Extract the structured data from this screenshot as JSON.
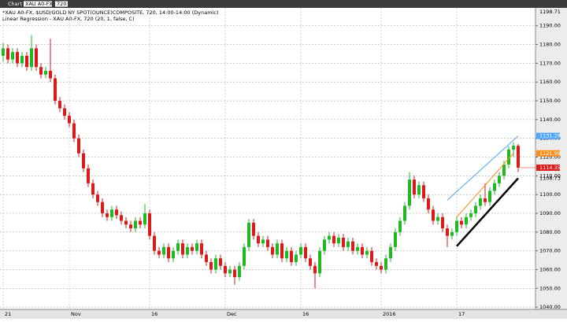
{
  "toolbar": {
    "title": "Chart",
    "symbol": "XAU A0-FX",
    "interval": "720"
  },
  "chart_data": {
    "type": "candlestick",
    "title": "*XAU A0-FX, $USD/GOLD NY SPOT(OUNCE)COMPOSITE, 720, 14:00-14:00 (Dynamic)",
    "subtitle": "Linear Regression - XAU A0-FX, 720 (20, 1, false, C)",
    "up_color": "#22b822",
    "down_color": "#dd1a1a",
    "grid": true,
    "ylim": [
      1039.2,
      1198.71
    ],
    "yticks": [
      {
        "value": 1190,
        "label": "1190.00"
      },
      {
        "value": 1180,
        "label": "1180.00"
      },
      {
        "value": 1170,
        "label": "1170.00"
      },
      {
        "value": 1160,
        "label": "1160.00"
      },
      {
        "value": 1150,
        "label": "1150.00"
      },
      {
        "value": 1140,
        "label": "1140.00"
      },
      {
        "value": 1130,
        "label": "1130.00"
      },
      {
        "value": 1120,
        "label": "1120.00"
      },
      {
        "value": 1110,
        "label": "1110.00"
      },
      {
        "value": 1100,
        "label": "1100.00"
      },
      {
        "value": 1090,
        "label": "1090.00"
      },
      {
        "value": 1080,
        "label": "1080.00"
      },
      {
        "value": 1070,
        "label": "1070.00"
      },
      {
        "value": 1060,
        "label": "1060.00"
      },
      {
        "value": 1050,
        "label": "1050.00"
      },
      {
        "value": 1040,
        "label": "1040.00"
      }
    ],
    "xticks": [
      {
        "value": 0,
        "label": "21"
      },
      {
        "value": 14,
        "label": "Nov"
      },
      {
        "value": 31,
        "label": "16"
      },
      {
        "value": 47,
        "label": "Dec"
      },
      {
        "value": 63,
        "label": "16"
      },
      {
        "value": 80,
        "label": "2016"
      },
      {
        "value": 96,
        "label": "17"
      }
    ],
    "candles": [
      [
        1174,
        1181,
        1171,
        1178
      ],
      [
        1178,
        1180,
        1170,
        1172
      ],
      [
        1172,
        1178,
        1170,
        1176
      ],
      [
        1176,
        1178,
        1168,
        1170
      ],
      [
        1170,
        1176,
        1168,
        1174
      ],
      [
        1174,
        1176,
        1166,
        1168
      ],
      [
        1168,
        1185,
        1166,
        1178
      ],
      [
        1178,
        1180,
        1166,
        1168
      ],
      [
        1168,
        1170,
        1162,
        1164
      ],
      [
        1164,
        1168,
        1162,
        1166
      ],
      [
        1166,
        1183,
        1160,
        1162
      ],
      [
        1162,
        1164,
        1148,
        1150
      ],
      [
        1150,
        1152,
        1144,
        1146
      ],
      [
        1146,
        1148,
        1140,
        1142
      ],
      [
        1142,
        1144,
        1136,
        1138
      ],
      [
        1138,
        1140,
        1128,
        1130
      ],
      [
        1130,
        1132,
        1120,
        1122
      ],
      [
        1122,
        1124,
        1112,
        1114
      ],
      [
        1114,
        1116,
        1104,
        1106
      ],
      [
        1106,
        1108,
        1098,
        1100
      ],
      [
        1100,
        1102,
        1094,
        1096
      ],
      [
        1096,
        1098,
        1088,
        1090
      ],
      [
        1090,
        1092,
        1086,
        1088
      ],
      [
        1088,
        1094,
        1086,
        1092
      ],
      [
        1092,
        1094,
        1087,
        1089
      ],
      [
        1089,
        1091,
        1084,
        1086
      ],
      [
        1086,
        1088,
        1082,
        1084
      ],
      [
        1084,
        1086,
        1080,
        1082
      ],
      [
        1082,
        1088,
        1080,
        1086
      ],
      [
        1086,
        1088,
        1082,
        1084
      ],
      [
        1084,
        1095,
        1082,
        1090
      ],
      [
        1090,
        1092,
        1076,
        1078
      ],
      [
        1078,
        1080,
        1068,
        1070
      ],
      [
        1070,
        1072,
        1066,
        1068
      ],
      [
        1068,
        1074,
        1066,
        1072
      ],
      [
        1072,
        1074,
        1064,
        1066
      ],
      [
        1066,
        1072,
        1064,
        1070
      ],
      [
        1070,
        1076,
        1068,
        1074
      ],
      [
        1074,
        1076,
        1066,
        1068
      ],
      [
        1068,
        1074,
        1066,
        1072
      ],
      [
        1072,
        1074,
        1068,
        1070
      ],
      [
        1070,
        1076,
        1068,
        1074
      ],
      [
        1074,
        1076,
        1066,
        1068
      ],
      [
        1068,
        1070,
        1062,
        1064
      ],
      [
        1064,
        1066,
        1058,
        1060
      ],
      [
        1060,
        1068,
        1058,
        1066
      ],
      [
        1066,
        1068,
        1060,
        1062
      ],
      [
        1062,
        1064,
        1056,
        1058
      ],
      [
        1058,
        1062,
        1056,
        1060
      ],
      [
        1060,
        1062,
        1052,
        1056
      ],
      [
        1056,
        1064,
        1054,
        1062
      ],
      [
        1062,
        1074,
        1060,
        1072
      ],
      [
        1072,
        1087,
        1070,
        1085
      ],
      [
        1085,
        1087,
        1076,
        1078
      ],
      [
        1078,
        1080,
        1072,
        1074
      ],
      [
        1074,
        1078,
        1072,
        1076
      ],
      [
        1076,
        1078,
        1070,
        1072
      ],
      [
        1072,
        1074,
        1066,
        1068
      ],
      [
        1068,
        1076,
        1066,
        1074
      ],
      [
        1074,
        1076,
        1064,
        1066
      ],
      [
        1066,
        1072,
        1064,
        1070
      ],
      [
        1070,
        1072,
        1062,
        1064
      ],
      [
        1064,
        1070,
        1062,
        1068
      ],
      [
        1068,
        1074,
        1066,
        1072
      ],
      [
        1072,
        1074,
        1064,
        1066
      ],
      [
        1066,
        1068,
        1060,
        1062
      ],
      [
        1062,
        1064,
        1050,
        1058
      ],
      [
        1058,
        1072,
        1056,
        1070
      ],
      [
        1070,
        1078,
        1068,
        1076
      ],
      [
        1076,
        1080,
        1074,
        1078
      ],
      [
        1078,
        1080,
        1072,
        1074
      ],
      [
        1074,
        1079,
        1072,
        1077
      ],
      [
        1077,
        1079,
        1070,
        1072
      ],
      [
        1072,
        1077,
        1070,
        1075
      ],
      [
        1075,
        1077,
        1068,
        1070
      ],
      [
        1070,
        1074,
        1068,
        1072
      ],
      [
        1072,
        1074,
        1066,
        1068
      ],
      [
        1068,
        1072,
        1066,
        1070
      ],
      [
        1070,
        1072,
        1062,
        1064
      ],
      [
        1064,
        1066,
        1060,
        1062
      ],
      [
        1062,
        1064,
        1058,
        1060
      ],
      [
        1060,
        1068,
        1058,
        1066
      ],
      [
        1066,
        1074,
        1064,
        1072
      ],
      [
        1072,
        1082,
        1070,
        1080
      ],
      [
        1080,
        1088,
        1078,
        1086
      ],
      [
        1086,
        1096,
        1084,
        1094
      ],
      [
        1094,
        1112,
        1092,
        1108
      ],
      [
        1108,
        1110,
        1098,
        1100
      ],
      [
        1100,
        1107,
        1098,
        1105
      ],
      [
        1105,
        1107,
        1096,
        1098
      ],
      [
        1098,
        1100,
        1090,
        1092
      ],
      [
        1092,
        1094,
        1084,
        1086
      ],
      [
        1086,
        1090,
        1084,
        1088
      ],
      [
        1088,
        1090,
        1080,
        1082
      ],
      [
        1082,
        1084,
        1072,
        1078
      ],
      [
        1078,
        1082,
        1076,
        1080
      ],
      [
        1080,
        1088,
        1078,
        1086
      ],
      [
        1086,
        1088,
        1082,
        1084
      ],
      [
        1084,
        1090,
        1082,
        1088
      ],
      [
        1088,
        1092,
        1086,
        1090
      ],
      [
        1090,
        1096,
        1088,
        1094
      ],
      [
        1094,
        1100,
        1092,
        1098
      ],
      [
        1098,
        1106,
        1094,
        1096
      ],
      [
        1096,
        1104,
        1094,
        1102
      ],
      [
        1102,
        1108,
        1100,
        1106
      ],
      [
        1106,
        1112,
        1104,
        1110
      ],
      [
        1110,
        1118,
        1108,
        1116
      ],
      [
        1116,
        1126,
        1114,
        1124
      ],
      [
        1124,
        1128,
        1120,
        1126
      ],
      [
        1126,
        1127,
        1112,
        1114.35
      ]
    ],
    "regression": [
      {
        "color": "#4da6ff",
        "width": 1,
        "x": [
          94,
          109
        ],
        "values": [
          1097,
          1131.28
        ]
      },
      {
        "color": "#ff8c1a",
        "width": 1,
        "x": [
          96,
          108
        ],
        "values": [
          1088,
          1121.99
        ]
      },
      {
        "color": "#000000",
        "width": 2.5,
        "x": [
          96,
          109
        ],
        "values": [
          1072.5,
          1108.73
        ]
      }
    ]
  }
}
